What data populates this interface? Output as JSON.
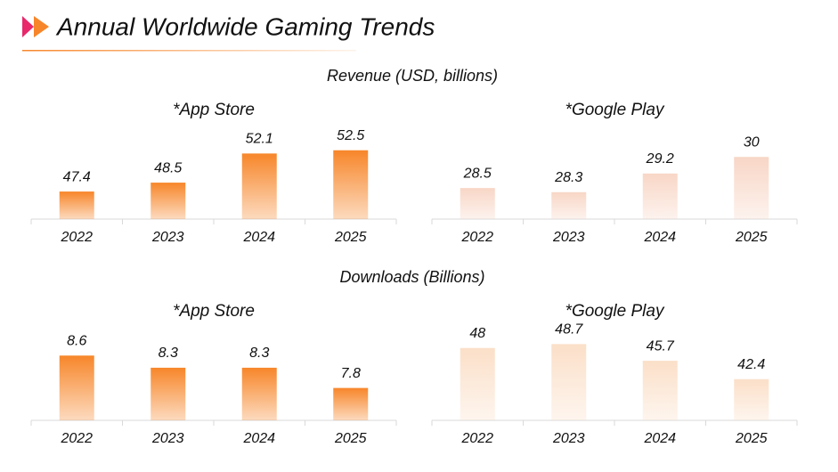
{
  "title": "Annual Worldwide Gaming Trends",
  "section_headings": [
    "Revenue (USD, billions)",
    "Downloads (Billions)"
  ],
  "chart_data": [
    {
      "type": "bar",
      "title": "*App Store",
      "categories": [
        "2022",
        "2023",
        "2024",
        "2025"
      ],
      "values": [
        47.4,
        48.5,
        52.1,
        52.5
      ],
      "color": "#f7862a",
      "ylim": [
        44,
        55
      ]
    },
    {
      "type": "bar",
      "title": "*Google Play",
      "categories": [
        "2022",
        "2023",
        "2024",
        "2025"
      ],
      "values": [
        28.5,
        28.3,
        29.2,
        30
      ],
      "color": "#f8d6c6",
      "ylim": [
        27,
        31.3
      ]
    },
    {
      "type": "bar",
      "title": "*App Store",
      "categories": [
        "2022",
        "2023",
        "2024",
        "2025"
      ],
      "values": [
        8.6,
        8.3,
        8.3,
        7.8
      ],
      "color": "#f7862a",
      "ylim": [
        7,
        9.2
      ]
    },
    {
      "type": "bar",
      "title": "*Google Play",
      "categories": [
        "2022",
        "2023",
        "2024",
        "2025"
      ],
      "values": [
        48,
        48.7,
        45.7,
        42.4
      ],
      "color": "#fbdfc8",
      "ylim": [
        35,
        51
      ]
    }
  ]
}
